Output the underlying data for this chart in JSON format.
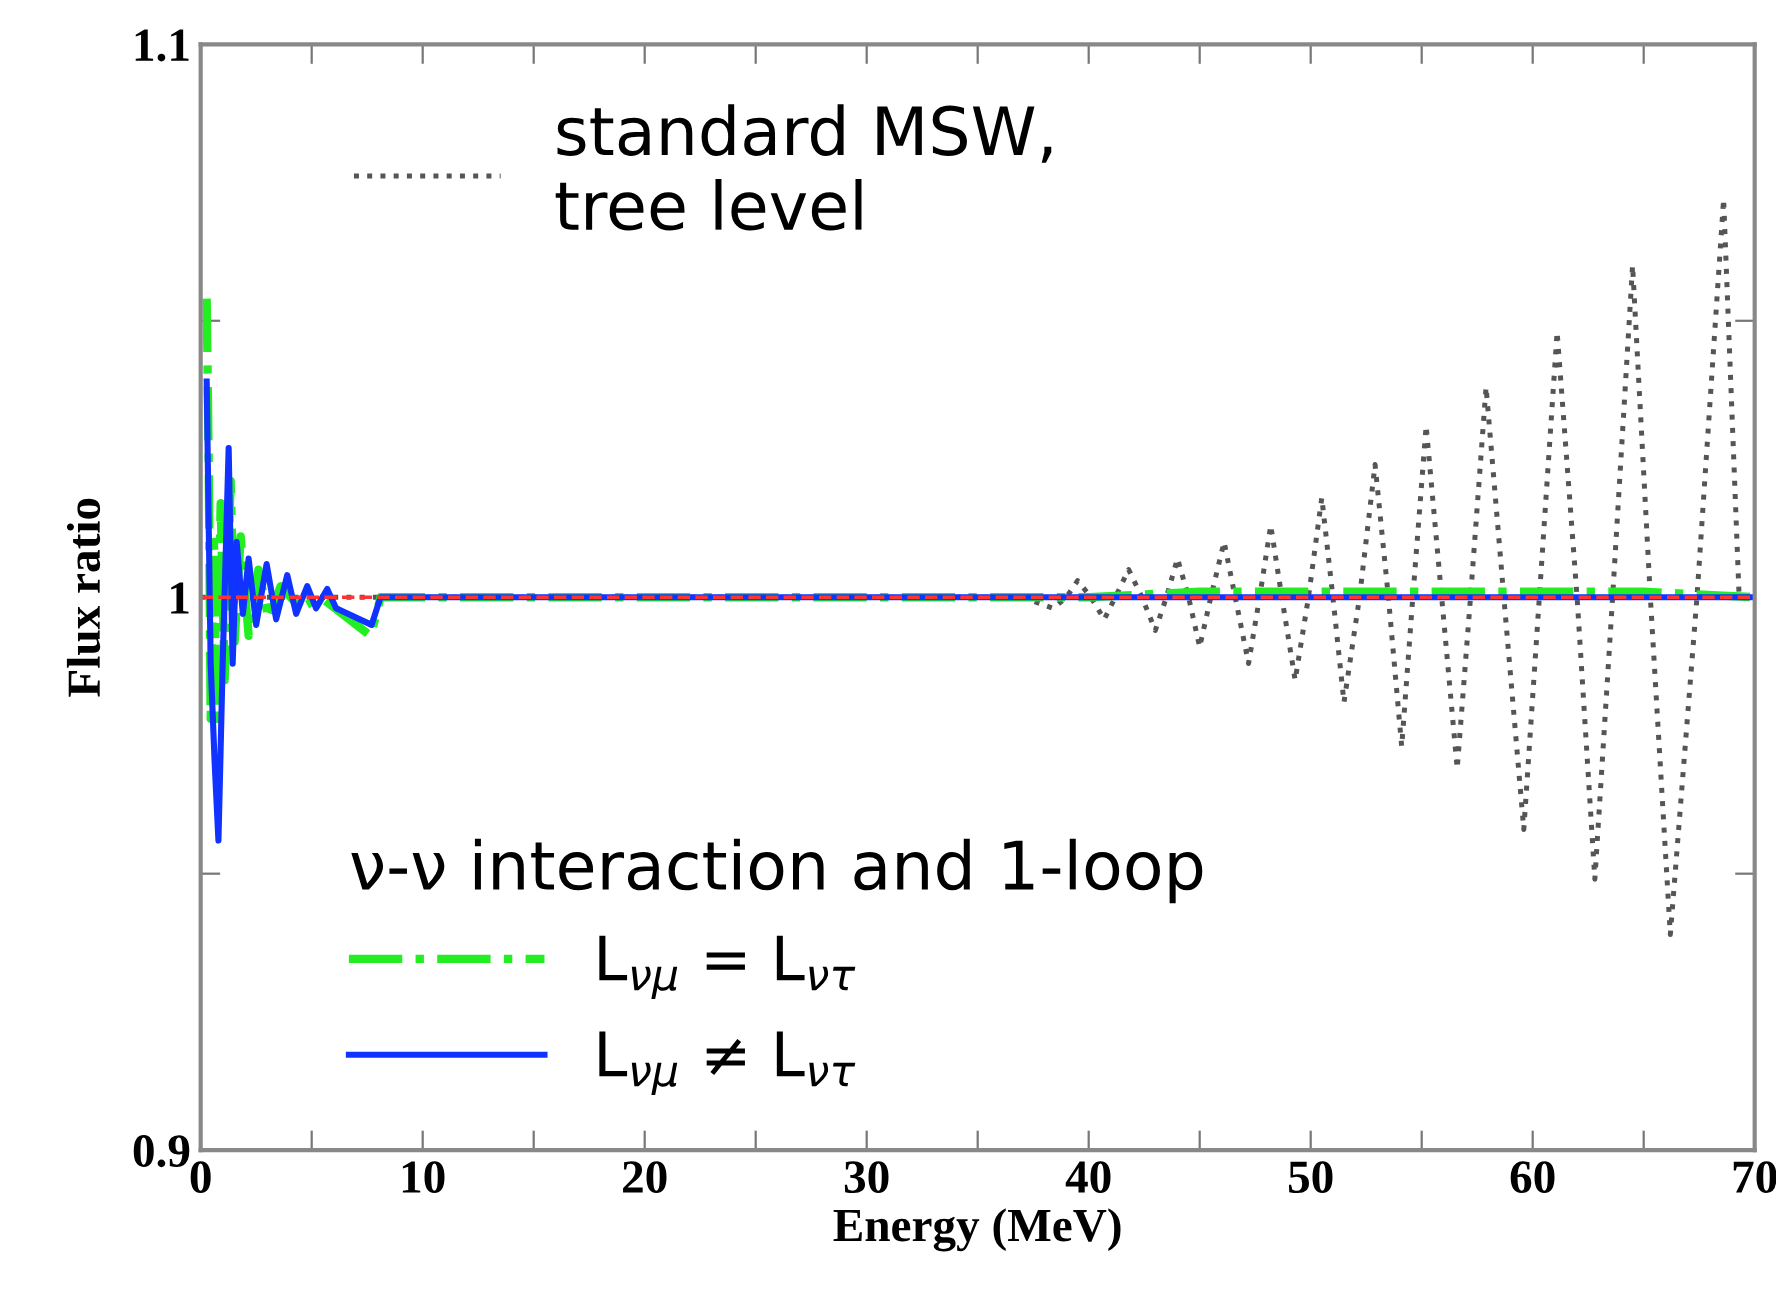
{
  "chart_data": {
    "type": "line",
    "xlabel": "Energy (MeV)",
    "ylabel": "Flux ratio",
    "xlim": [
      0,
      70
    ],
    "ylim": [
      0.9,
      1.1
    ],
    "xticks": [
      0,
      {
        "value": 5,
        "label": null
      },
      10,
      {
        "value": 15,
        "label": null
      },
      20,
      {
        "value": 25,
        "label": null
      },
      30,
      {
        "value": 35,
        "label": null
      },
      40,
      {
        "value": 45,
        "label": null
      },
      50,
      {
        "value": 55,
        "label": null
      },
      60,
      {
        "value": 65,
        "label": null
      },
      70
    ],
    "yticks": [
      {
        "value": 0.9,
        "label": "0.9"
      },
      {
        "value": 0.95,
        "label": null
      },
      {
        "value": 1,
        "label": "1"
      },
      {
        "value": 1.05,
        "label": null
      },
      {
        "value": 1.1,
        "label": "1.1"
      }
    ],
    "grid": false,
    "legend": "left",
    "legend_title": "ν-ν interaction and 1-loop",
    "series": [
      {
        "name": "standard MSW,\ntree level",
        "color": "#555555",
        "line_style": "dotted",
        "x": [
          0,
          37,
          38.4,
          39,
          39.5,
          40.1,
          40.7,
          41.2,
          41.8,
          42.4,
          43,
          43.5,
          44,
          44.5,
          45,
          45.5,
          46.1,
          46.6,
          47.2,
          47.7,
          48.2,
          48.7,
          49.3,
          49.9,
          50.5,
          51,
          51.5,
          52.2,
          52.9,
          53.5,
          54.1,
          54.6,
          55.2,
          55.9,
          56.6,
          57.2,
          57.9,
          58.7,
          59.6,
          60.3,
          61.1,
          62,
          62.8,
          63.6,
          64.5,
          65.3,
          66.2,
          67.4,
          68.6,
          69.3,
          70
        ],
        "values": [
          1,
          1,
          0.998,
          1,
          1.003,
          1,
          0.996,
          1,
          1.005,
          1,
          0.994,
          1,
          1.007,
          1,
          0.991,
          1,
          1.01,
          1,
          0.988,
          1,
          1.013,
          1,
          0.985,
          1,
          1.018,
          1,
          0.981,
          1,
          1.024,
          1,
          0.973,
          1,
          1.031,
          1,
          0.969,
          1,
          1.038,
          1,
          0.958,
          1,
          1.048,
          1,
          0.949,
          1,
          1.06,
          1,
          0.939,
          1,
          1.072,
          1,
          1
        ]
      },
      {
        "name": "L$_{νμ}$ = L$_{ντ}$",
        "color": "#22ee22",
        "line_style": "dashdot",
        "x": [
          0.27,
          0.36,
          0.45,
          0.6,
          0.72,
          0.9,
          1.08,
          1.35,
          1.53,
          1.8,
          2.16,
          2.6,
          3.06,
          3.6,
          4.5,
          5.4,
          7.66,
          8.1,
          40,
          45,
          50,
          55,
          60,
          65,
          70
        ],
        "values": [
          1.054,
          1.025,
          0.978,
          1.01,
          0.978,
          1.017,
          0.985,
          1.021,
          0.992,
          1.011,
          0.993,
          1.005,
          0.996,
          1.002,
          0.998,
          1.0,
          0.993,
          1.0,
          1.0,
          1.001,
          1.001,
          1.001,
          1.001,
          1.001,
          1.0
        ]
      },
      {
        "name": "L$_{νμ}$ ≠ L$_{ντ}$",
        "color": "#1133ff",
        "line_style": "solid",
        "x": [
          0.27,
          0.45,
          0.63,
          0.8,
          0.99,
          1.26,
          1.44,
          1.62,
          1.9,
          2.16,
          2.5,
          2.97,
          3.4,
          3.9,
          4.3,
          4.8,
          5.2,
          5.7,
          6.1,
          7.7,
          8.1,
          70
        ],
        "values": [
          1.039,
          0.988,
          0.97,
          0.956,
          0.988,
          1.027,
          0.988,
          1.01,
          0.997,
          1.007,
          0.995,
          1.006,
          0.996,
          1.004,
          0.997,
          1.002,
          0.998,
          1.0015,
          0.998,
          0.995,
          1.0,
          1.0
        ]
      },
      {
        "color": "#ff3333",
        "line_style": "dashed",
        "x": [
          0,
          70
        ],
        "values": [
          1,
          1
        ]
      }
    ]
  }
}
